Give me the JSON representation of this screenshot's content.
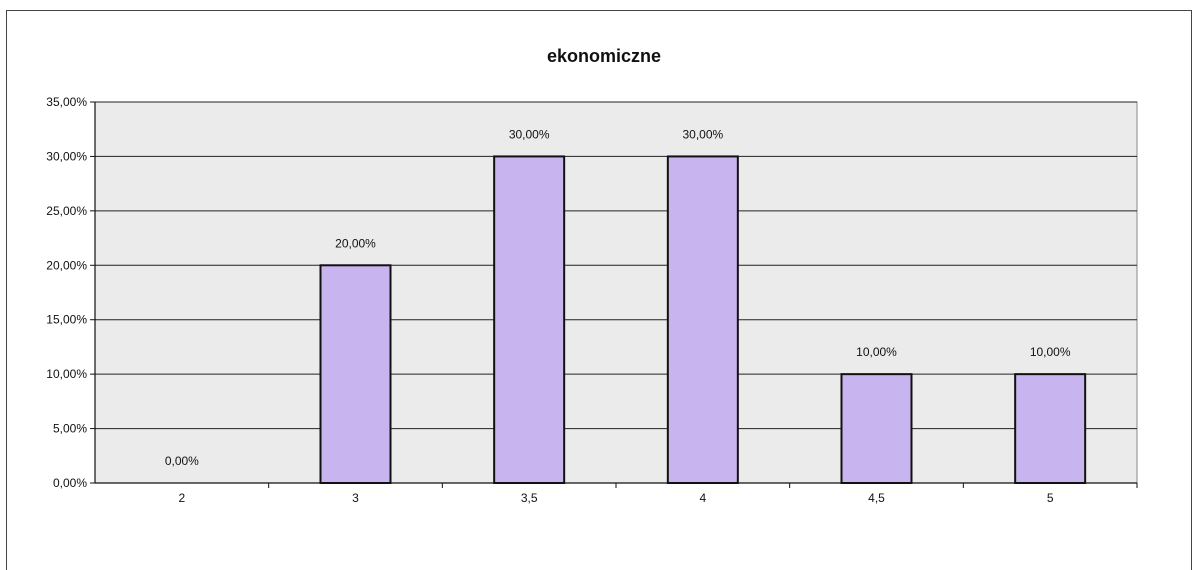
{
  "chart_data": {
    "type": "bar",
    "title": "ekonomiczne",
    "xlabel": "",
    "ylabel": "",
    "categories": [
      "2",
      "3",
      "3,5",
      "4",
      "4,5",
      "5"
    ],
    "values": [
      0,
      20,
      30,
      30,
      10,
      10
    ],
    "data_labels": [
      "0,00%",
      "20,00%",
      "30,00%",
      "30,00%",
      "10,00%",
      "10,00%"
    ],
    "ylim": [
      0,
      35
    ],
    "yticks": [
      0,
      5,
      10,
      15,
      20,
      25,
      30,
      35
    ],
    "ytick_labels": [
      "0,00%",
      "5,00%",
      "10,00%",
      "15,00%",
      "20,00%",
      "25,00%",
      "30,00%",
      "35,00%"
    ],
    "grid": true,
    "legend": "none",
    "colors": {
      "bar_fill": "#c8b4ee",
      "bar_stroke": "#111111",
      "plot_background": "#ebebeb",
      "gridline": "#222222"
    }
  }
}
